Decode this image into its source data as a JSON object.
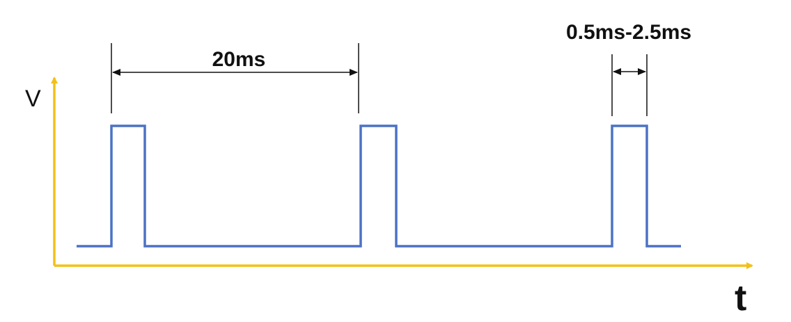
{
  "diagram": {
    "period_label": "20ms",
    "pulse_width_label": "0.5ms-2.5ms",
    "y_axis_label": "V",
    "x_axis_label": "t"
  },
  "colors": {
    "axis": "#F2C018",
    "signal": "#4C72C4",
    "annotation": "#111111",
    "background": "#FFFFFF"
  }
}
